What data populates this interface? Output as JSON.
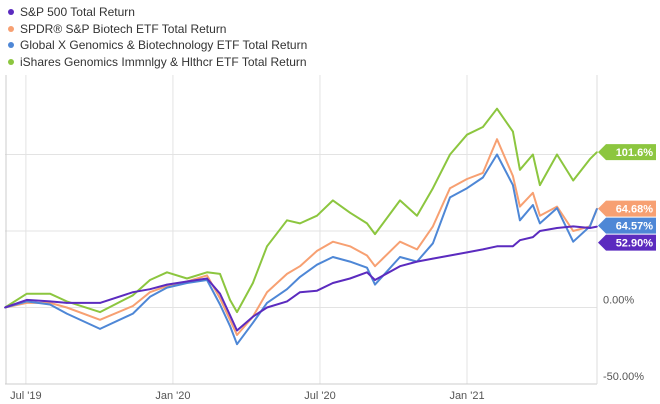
{
  "chart_data": {
    "type": "line",
    "title": "",
    "xlabel": "",
    "ylabel": "",
    "ylim": [
      -50,
      152
    ],
    "xlim": [
      2019.429,
      2021.442
    ],
    "grid": true,
    "legend_position": "top-left",
    "x_ticks": [
      {
        "x": 2019.5,
        "label": "Jul '19"
      },
      {
        "x": 2020.0,
        "label": "Jan '20"
      },
      {
        "x": 2020.5,
        "label": "Jul '20"
      },
      {
        "x": 2021.0,
        "label": "Jan '21"
      }
    ],
    "y_ticks": [
      {
        "y": 0,
        "label": "0.00%"
      },
      {
        "y": -50,
        "label": "-50.00%"
      }
    ],
    "y_gridlines": [
      0,
      50,
      100
    ],
    "x": [
      2019.429,
      2019.503,
      2019.582,
      2019.639,
      2019.752,
      2019.864,
      2019.922,
      2019.98,
      2020.048,
      2020.116,
      2020.16,
      2020.194,
      2020.218,
      2020.272,
      2020.32,
      2020.388,
      2020.432,
      2020.49,
      2020.544,
      2020.602,
      2020.66,
      2020.687,
      2020.772,
      2020.83,
      2020.884,
      2020.942,
      2021.0,
      2021.054,
      2021.102,
      2021.156,
      2021.18,
      2021.224,
      2021.248,
      2021.306,
      2021.361,
      2021.418,
      2021.442
    ],
    "series": [
      {
        "name": "iShares Genomics Immnlgy & Hlthcr ETF Total Return",
        "color": "#8cc63f",
        "end_label": "101.6%",
        "values": [
          0,
          9,
          9,
          4,
          -3,
          8,
          18,
          23,
          19,
          23,
          22,
          5,
          -3,
          16,
          40,
          57,
          55,
          60,
          70,
          62,
          55,
          48,
          70,
          60,
          78,
          100,
          113,
          118,
          130,
          115,
          90,
          100,
          80,
          100,
          83,
          97,
          101.6
        ]
      },
      {
        "name": "SPDR® S&P Biotech ETF Total Return",
        "color": "#f7a072",
        "end_label": "64.68%",
        "values": [
          0,
          3,
          3,
          0,
          -8,
          1,
          10,
          14,
          17,
          21,
          6,
          -8,
          -18,
          -6,
          10,
          22,
          27,
          37,
          43,
          40,
          34,
          27,
          43,
          38,
          53,
          78,
          84,
          88,
          110,
          86,
          66,
          75,
          60,
          66,
          50,
          53,
          64.68
        ]
      },
      {
        "name": "Global X Genomics & Biotechnology ETF Total Return",
        "color": "#4e87d6",
        "end_label": "64.57%",
        "values": [
          0,
          4,
          2,
          -4,
          -14,
          -4,
          7,
          13,
          16,
          18,
          2,
          -12,
          -24,
          -10,
          3,
          12,
          20,
          28,
          33,
          30,
          26,
          15,
          33,
          30,
          42,
          72,
          78,
          85,
          100,
          80,
          57,
          67,
          55,
          65,
          43,
          53,
          64.57
        ]
      },
      {
        "name": "S&P 500 Total Return",
        "color": "#5b2bbf",
        "end_label": "52.90%",
        "values": [
          0,
          5,
          4,
          3,
          3,
          10,
          12,
          15,
          17,
          19,
          9,
          -5,
          -15,
          -6,
          0,
          4,
          10,
          11,
          16,
          19,
          23,
          18,
          27,
          30,
          32,
          34,
          36,
          38,
          40,
          40,
          44,
          46,
          50,
          52,
          53,
          52,
          52.9
        ]
      }
    ],
    "legend_order": [
      3,
      1,
      2,
      0
    ]
  }
}
